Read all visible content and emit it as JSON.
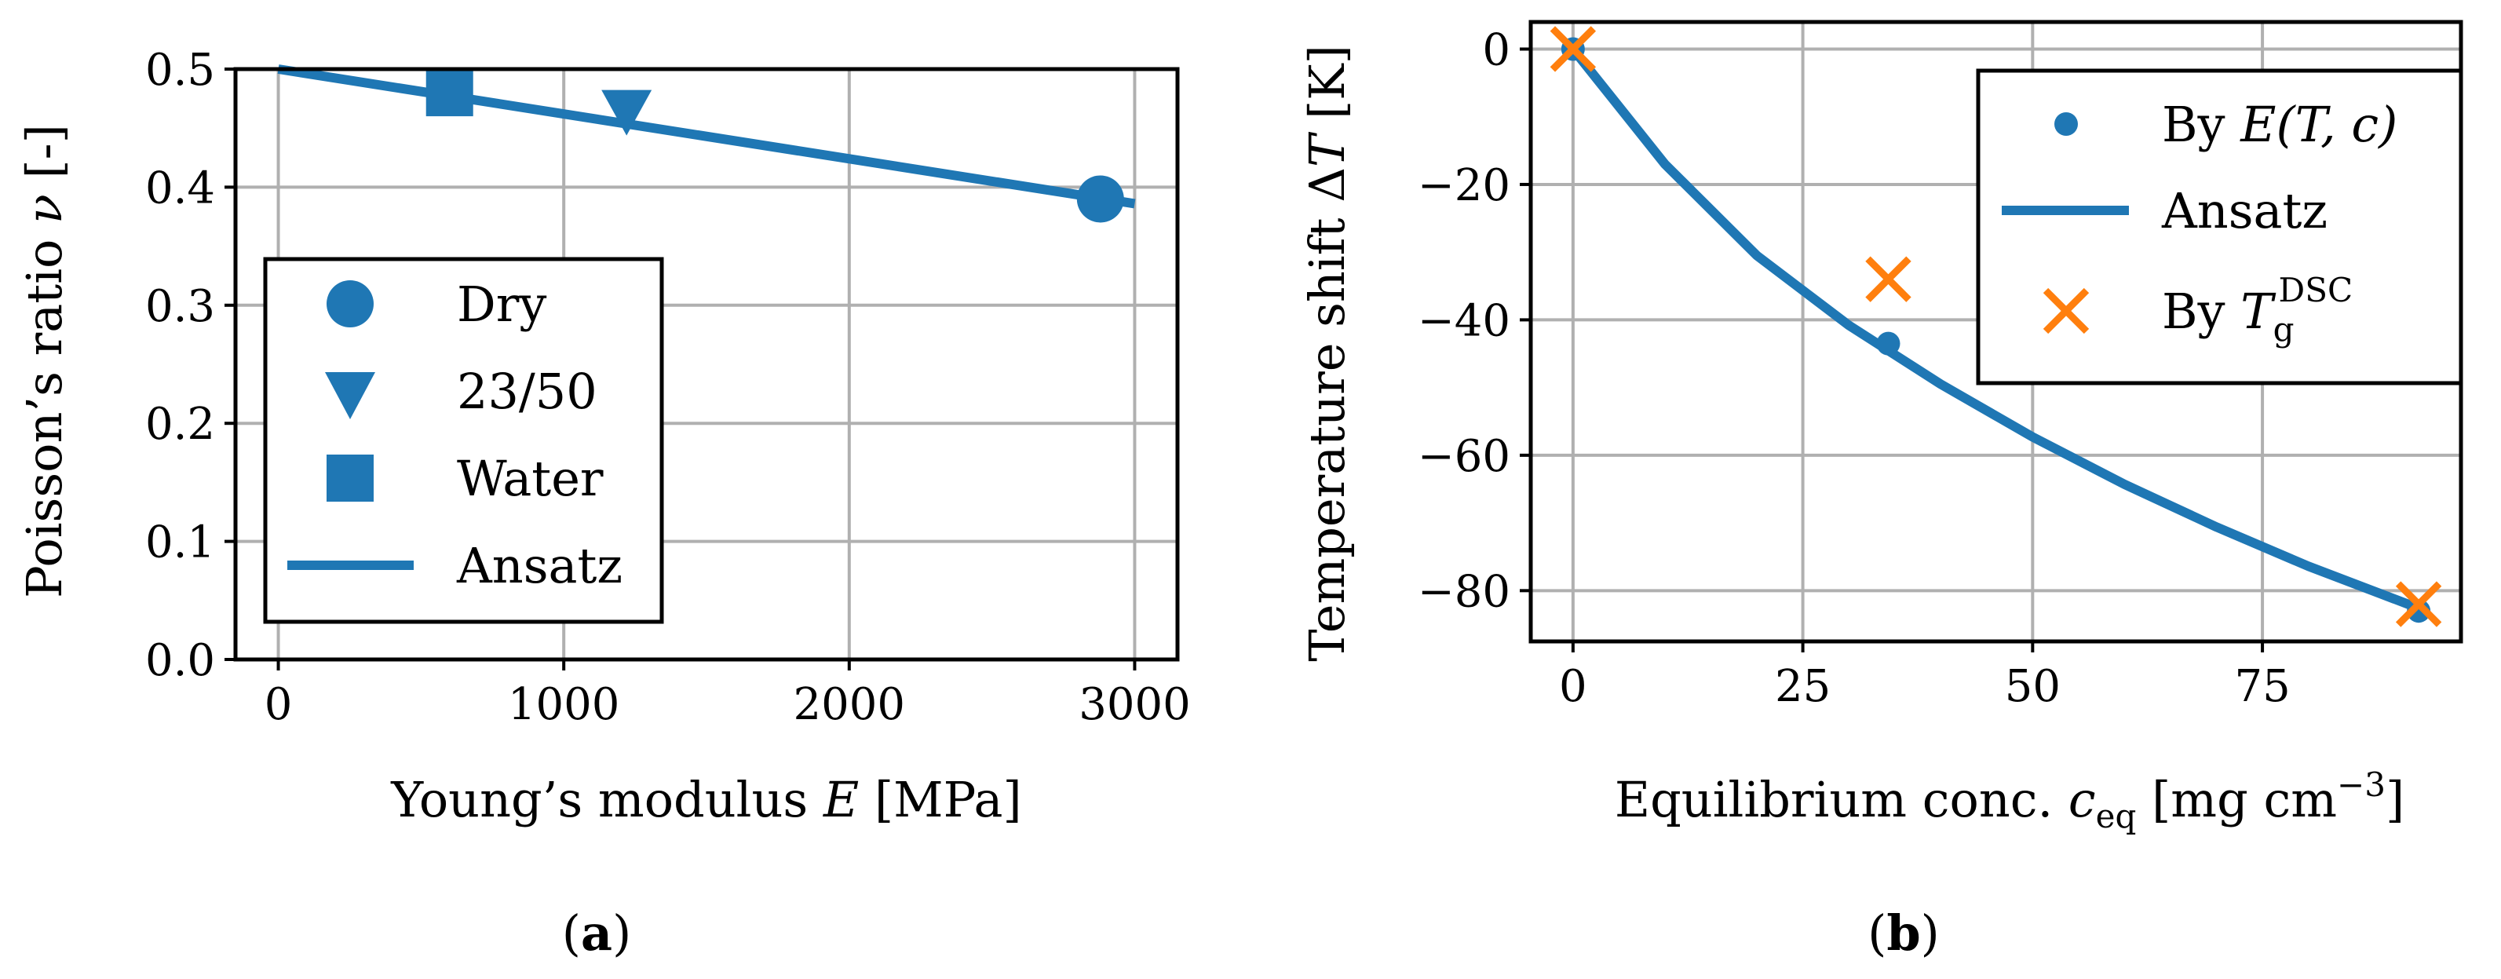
{
  "chart_data": [
    {
      "type": "scatter",
      "panel": "a",
      "caption": "(a)",
      "caption_label": "a",
      "xlabel": "Young’s modulus E [MPa]",
      "xlabel_text": "Young’s modulus ",
      "xlabel_var": "E",
      "xlabel_unit": " [MPa]",
      "ylabel": "Poisson’s ratio ν [-]",
      "ylabel_text": "Poisson’s ratio ",
      "ylabel_var": "ν",
      "ylabel_unit": " [-]",
      "xlim": [
        -150,
        3150
      ],
      "ylim": [
        0.0,
        0.5
      ],
      "xticks": [
        0,
        1000,
        2000,
        3000
      ],
      "xtick_labels": [
        "0",
        "1000",
        "2000",
        "3000"
      ],
      "yticks": [
        0.0,
        0.1,
        0.2,
        0.3,
        0.4,
        0.5
      ],
      "ytick_labels": [
        "0.0",
        "0.1",
        "0.2",
        "0.3",
        "0.4",
        "0.5"
      ],
      "grid": true,
      "legend_position": "bottom-left",
      "series": [
        {
          "name": "Dry",
          "marker": "circle",
          "x": [
            2880
          ],
          "y": [
            0.39
          ]
        },
        {
          "name": "23/50",
          "marker": "triangle-down",
          "x": [
            1220
          ],
          "y": [
            0.465
          ]
        },
        {
          "name": "Water",
          "marker": "square",
          "x": [
            600
          ],
          "y": [
            0.48
          ]
        },
        {
          "name": "Ansatz",
          "marker": "line",
          "x": [
            0,
            3000
          ],
          "y": [
            0.5,
            0.386
          ]
        }
      ],
      "color": "#1f77b4"
    },
    {
      "type": "line",
      "panel": "b",
      "caption": "(b)",
      "caption_label": "b",
      "xlabel": "Equilibrium conc. c_eq [mg cm^-3]",
      "xlabel_text": "Equilibrium conc. ",
      "xlabel_var": "c",
      "xlabel_sub": "eq",
      "xlabel_unit": " [mg cm",
      "xlabel_sup": "−3",
      "xlabel_close": "]",
      "ylabel": "Temperature shift ΔT [K]",
      "ylabel_text": "Temperature shift Δ",
      "ylabel_var": "T",
      "ylabel_unit": " [K]",
      "xlim": [
        -4.6,
        96.6
      ],
      "ylim": [
        -87.5,
        4.0
      ],
      "xticks": [
        0,
        25,
        50,
        75
      ],
      "xtick_labels": [
        "0",
        "25",
        "50",
        "75"
      ],
      "yticks": [
        0,
        -20,
        -40,
        -60,
        -80
      ],
      "ytick_labels": [
        "0",
        "−20",
        "−40",
        "−60",
        "−80"
      ],
      "grid": true,
      "legend_position": "top-right",
      "series": [
        {
          "name": "By E(T, c)",
          "marker": "dot",
          "color": "#1f77b4",
          "x": [
            0,
            34.3,
            92
          ],
          "y": [
            0,
            -43.5,
            -83
          ]
        },
        {
          "name": "Ansatz",
          "marker": "line",
          "color": "#1f77b4",
          "x": [
            0,
            10,
            20,
            30,
            40,
            50,
            60,
            70,
            80,
            92
          ],
          "y": [
            0,
            -17,
            -30.5,
            -40.8,
            -49.5,
            -57.3,
            -64.3,
            -70.6,
            -76.4,
            -82.6
          ]
        },
        {
          "name": "By T_g^DSC",
          "marker": "x",
          "color": "#ff7f0e",
          "x": [
            0,
            34.3,
            92
          ],
          "y": [
            0,
            -34,
            -82
          ]
        }
      ],
      "legend": {
        "entry1_pre": "By ",
        "entry1_math": "E(T, c)",
        "entry2": "Ansatz",
        "entry3_pre": "By ",
        "entry3_var": "T",
        "entry3_sub": "g",
        "entry3_sup": "DSC"
      }
    }
  ],
  "colors": {
    "blue": "#1f77b4",
    "orange": "#ff7f0e",
    "grid": "#b0b0b0"
  }
}
